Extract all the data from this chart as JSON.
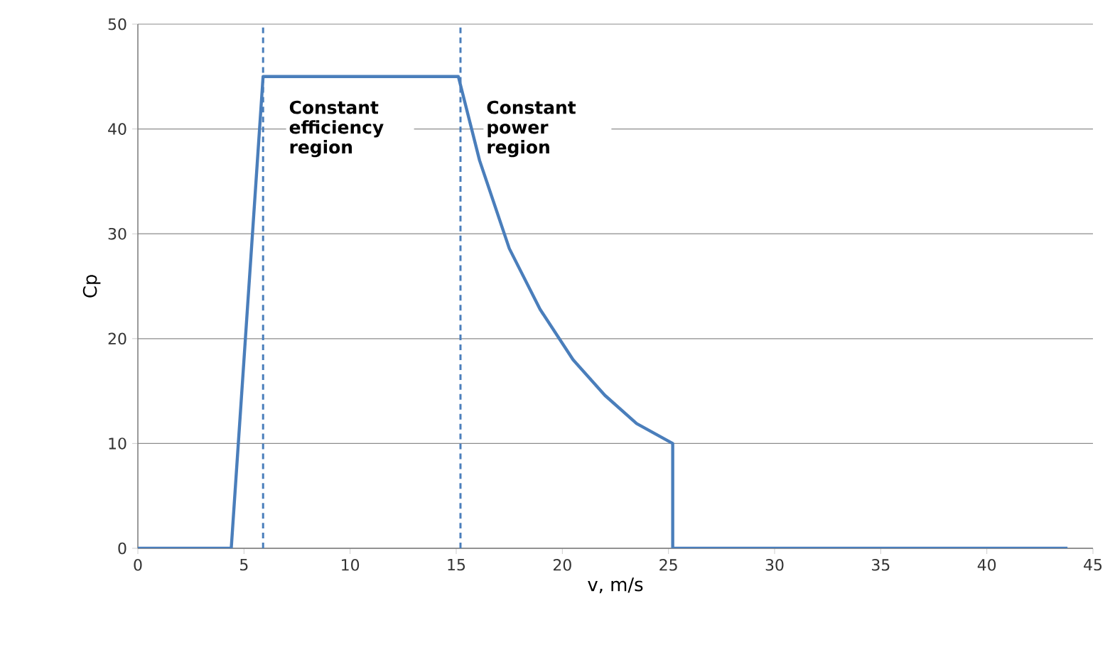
{
  "chart_data": {
    "type": "line",
    "xlabel": "v, m/s",
    "ylabel": "Cp",
    "x": [
      0,
      4.4,
      5.9,
      15.1,
      16.1,
      17.5,
      18.95,
      20.5,
      22.0,
      23.5,
      25.2,
      25.2,
      43.8
    ],
    "series": [
      {
        "color": "#4a7ebb",
        "values": [
          0,
          0,
          45,
          45,
          37,
          28.6,
          22.8,
          18,
          14.6,
          11.9,
          10,
          0,
          0
        ]
      }
    ],
    "xlim": [
      0,
      45
    ],
    "xticks": [
      0,
      5,
      10,
      15,
      20,
      25,
      30,
      35,
      40,
      45
    ],
    "ylim": [
      0,
      50
    ],
    "yticks": [
      0,
      10,
      20,
      30,
      40,
      50
    ],
    "grid": "y",
    "marker": "none",
    "line_style": "solid",
    "ref_lines": [
      {
        "axis": "x",
        "value": 5.9,
        "color": "#4a7ebb",
        "line_style": "dashed"
      },
      {
        "axis": "x",
        "value": 15.2,
        "color": "#4a7ebb",
        "line_style": "dashed"
      }
    ],
    "annotations": [
      "Constant efficiency region",
      "Constant power region"
    ]
  }
}
